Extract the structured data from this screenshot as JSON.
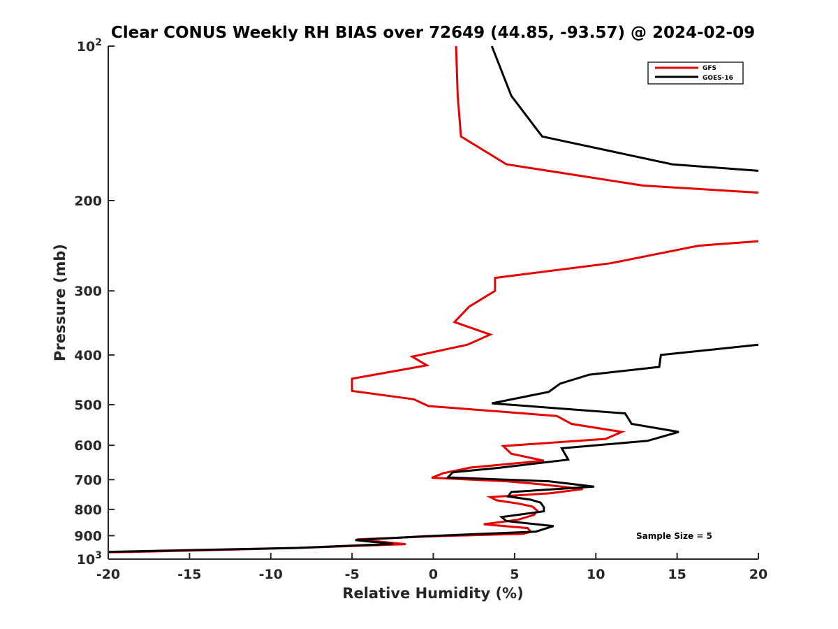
{
  "chart_data": {
    "type": "line",
    "title": "Clear CONUS Weekly RH BIAS over 72649 (44.85, -93.57) @ 2024-02-09",
    "xlabel": "Relative Humidity (%)",
    "ylabel": "Pressure (mb)",
    "xlim": [
      -20,
      20
    ],
    "ylim": [
      100,
      1000
    ],
    "y_scale": "log",
    "y_reversed": true,
    "grid": false,
    "x_ticks": [
      -20,
      -15,
      -10,
      -5,
      0,
      5,
      10,
      15,
      20
    ],
    "x_tick_labels": [
      "-20",
      "-15",
      "-10",
      "-5",
      "0",
      "5",
      "10",
      "15",
      "20"
    ],
    "y_ticks": [
      100,
      200,
      300,
      400,
      500,
      600,
      700,
      800,
      900,
      1000
    ],
    "y_tick_labels": [
      {
        "base": "10",
        "exp": "2"
      },
      {
        "base": "200",
        "exp": ""
      },
      {
        "base": "300",
        "exp": ""
      },
      {
        "base": "400",
        "exp": ""
      },
      {
        "base": "500",
        "exp": ""
      },
      {
        "base": "600",
        "exp": ""
      },
      {
        "base": "700",
        "exp": ""
      },
      {
        "base": "800",
        "exp": ""
      },
      {
        "base": "900",
        "exp": ""
      },
      {
        "base": "10",
        "exp": "3"
      }
    ],
    "legend_position": "top-right",
    "annotation": "Sample Size = 5",
    "series": [
      {
        "name": "GFS",
        "color": "#e60000",
        "segments": [
          [
            [
              1.4,
              100
            ],
            [
              1.5,
              125
            ],
            [
              1.7,
              150
            ],
            [
              4.5,
              170
            ],
            [
              12.9,
              187
            ],
            [
              20,
              193
            ]
          ],
          [
            [
              20,
              240
            ],
            [
              16.3,
              245
            ],
            [
              10.9,
              265
            ],
            [
              3.8,
              283
            ],
            [
              3.8,
              300
            ],
            [
              2.2,
              322
            ],
            [
              1.3,
              345
            ],
            [
              3.5,
              365
            ],
            [
              2.1,
              382
            ],
            [
              -1.3,
              403
            ],
            [
              -0.4,
              419
            ],
            [
              -5.0,
              445
            ],
            [
              -5.0,
              470
            ],
            [
              -1.2,
              488
            ],
            [
              -0.3,
              503
            ],
            [
              7.6,
              526
            ],
            [
              8.5,
              545
            ],
            [
              11.6,
              565
            ],
            [
              10.6,
              583
            ],
            [
              4.3,
              602
            ],
            [
              4.8,
              623
            ],
            [
              6.8,
              643
            ],
            [
              2.3,
              663
            ],
            [
              0.6,
              680
            ],
            [
              -0.1,
              694
            ],
            [
              4.5,
              705
            ],
            [
              6.7,
              715
            ],
            [
              9.2,
              730
            ],
            [
              7.2,
              744
            ],
            [
              3.5,
              757
            ],
            [
              3.9,
              768
            ],
            [
              5.3,
              780
            ],
            [
              6.1,
              790
            ],
            [
              6.4,
              805
            ],
            [
              6.2,
              820
            ],
            [
              5.2,
              838
            ],
            [
              3.1,
              855
            ],
            [
              5.8,
              870
            ],
            [
              6.0,
              885
            ],
            [
              5.5,
              893
            ],
            [
              0.2,
              902
            ],
            [
              -4.7,
              915
            ],
            [
              -1.7,
              935
            ],
            [
              -8.7,
              952
            ],
            [
              -18.3,
              968
            ],
            [
              -20,
              970
            ]
          ]
        ]
      },
      {
        "name": "GOES-16",
        "color": "#000000",
        "segments": [
          [
            [
              3.6,
              100
            ],
            [
              4.8,
              125
            ],
            [
              6.7,
              150
            ],
            [
              14.7,
              170
            ],
            [
              20,
              175
            ]
          ],
          [
            [
              20,
              382
            ],
            [
              14.0,
              400
            ],
            [
              13.9,
              422
            ],
            [
              9.6,
              437
            ],
            [
              7.8,
              455
            ],
            [
              7.1,
              472
            ],
            [
              3.6,
              497
            ],
            [
              11.8,
              520
            ],
            [
              12.2,
              545
            ],
            [
              15.1,
              565
            ],
            [
              13.2,
              588
            ],
            [
              7.9,
              608
            ],
            [
              8.3,
              640
            ],
            [
              4.0,
              664
            ],
            [
              1.2,
              677
            ],
            [
              0.9,
              693
            ],
            [
              7.1,
              705
            ],
            [
              9.9,
              722
            ],
            [
              4.8,
              740
            ],
            [
              4.6,
              755
            ],
            [
              6.0,
              766
            ],
            [
              6.6,
              776
            ],
            [
              6.8,
              792
            ],
            [
              6.8,
              807
            ],
            [
              4.2,
              828
            ],
            [
              4.5,
              843
            ],
            [
              7.4,
              862
            ],
            [
              6.3,
              884
            ],
            [
              -0.4,
              902
            ],
            [
              -4.8,
              918
            ],
            [
              -2.5,
              934
            ],
            [
              -8.4,
              951
            ],
            [
              -18.0,
              965
            ],
            [
              -20,
              968
            ]
          ]
        ]
      }
    ]
  }
}
